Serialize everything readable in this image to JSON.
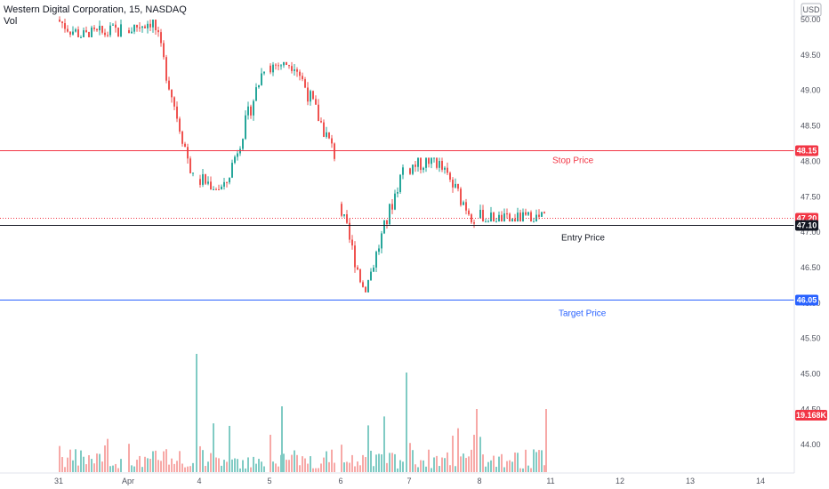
{
  "header": {
    "title": "Western Digital Corporation, 15, NASDAQ",
    "vol_label": "Vol"
  },
  "currency": "USD",
  "levels": {
    "stop": {
      "label": "Stop Price",
      "price": 48.15,
      "tag": "48.15",
      "color": "#f23645"
    },
    "current": {
      "price": 47.2,
      "tag": "47.20",
      "color": "#f23645"
    },
    "entry": {
      "label": "Entry Price",
      "price": 47.1,
      "tag": "47.10",
      "color": "#131722"
    },
    "target": {
      "label": "Target Price",
      "price": 46.05,
      "tag": "46.05",
      "color": "#2962ff"
    }
  },
  "volume_tag": "19.168K",
  "colors": {
    "up": "#26a69a",
    "down": "#ef5350",
    "vol_up": "#80cbc4",
    "vol_down": "#f7a9a7"
  },
  "chart_data": {
    "type": "candlestick",
    "title": "Western Digital Corporation, 15, NASDAQ",
    "y_ticks": [
      44.0,
      44.5,
      45.0,
      45.5,
      46.0,
      46.5,
      47.0,
      47.5,
      48.0,
      48.5,
      49.0,
      49.5,
      50.0
    ],
    "x_ticks": [
      "31",
      "Apr",
      "4",
      "5",
      "6",
      "7",
      "8",
      "11",
      "12",
      "13",
      "14"
    ],
    "ylim": [
      43.8,
      50.2
    ],
    "grid": false,
    "sessions": [
      {
        "label": "31",
        "open": 50.0,
        "close": 49.85,
        "high": 50.35,
        "low": 49.75
      },
      {
        "label": "Apr",
        "open": 49.85,
        "close": 47.75,
        "high": 50.0,
        "low": 47.6
      },
      {
        "label": "4",
        "open": 47.75,
        "close": 49.35,
        "high": 49.4,
        "low": 47.6
      },
      {
        "label": "5",
        "open": 49.35,
        "close": 48.1,
        "high": 49.4,
        "low": 48.0
      },
      {
        "label": "6",
        "open": 47.4,
        "close": 47.9,
        "high": 48.0,
        "low": 46.15
      },
      {
        "label": "7",
        "open": 47.9,
        "close": 47.2,
        "high": 48.05,
        "low": 46.55
      },
      {
        "label": "8",
        "open": 47.2,
        "close": 47.2,
        "high": 48.1,
        "low": 47.15
      }
    ]
  }
}
